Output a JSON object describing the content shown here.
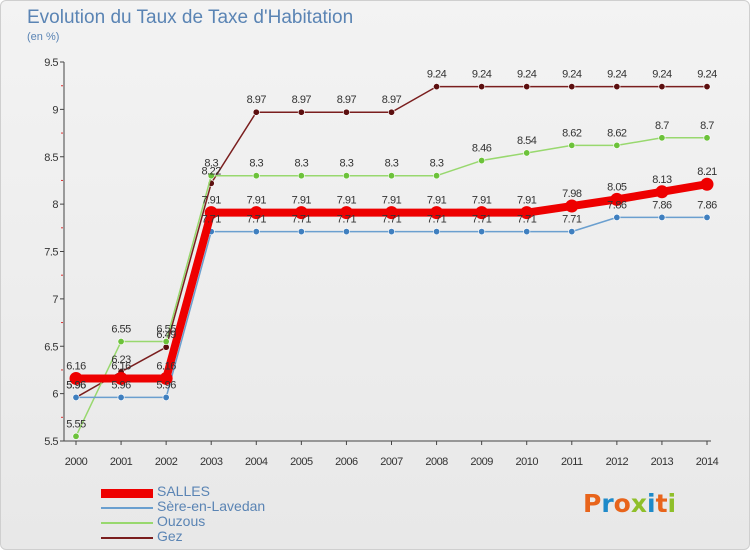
{
  "header": {
    "title": "Evolution du Taux de Taxe d'Habitation",
    "subtitle": "(en %)"
  },
  "logo": {
    "text": "Proxiti",
    "colors": [
      "#e8641b",
      "#1f8ac9",
      "#e8641b",
      "#8fbf2a",
      "#1f8ac9",
      "#e8641b",
      "#8fbf2a"
    ]
  },
  "chart_data": {
    "type": "line",
    "title": "Evolution du Taux de Taxe d'Habitation",
    "ylabel": "(en %)",
    "xlabel": "",
    "x": [
      "2000",
      "2001",
      "2002",
      "2003",
      "2004",
      "2005",
      "2006",
      "2007",
      "2008",
      "2009",
      "2010",
      "2011",
      "2012",
      "2013",
      "2014"
    ],
    "ylim": [
      5.5,
      9.5
    ],
    "yticks": [
      5.5,
      6,
      6.5,
      7,
      7.5,
      8,
      8.5,
      9,
      9.5
    ],
    "grid": false,
    "legend_position": "bottom-left",
    "series": [
      {
        "name": "Gez",
        "color": "#7a1e1e",
        "marker": "#5c0f0f",
        "values": [
          5.96,
          6.23,
          6.49,
          8.22,
          8.97,
          8.97,
          8.97,
          8.97,
          9.24,
          9.24,
          9.24,
          9.24,
          9.24,
          9.24,
          9.24
        ]
      },
      {
        "name": "Ouzous",
        "color": "#98d86e",
        "marker": "#6cc23a",
        "values": [
          5.55,
          6.55,
          6.55,
          8.3,
          8.3,
          8.3,
          8.3,
          8.3,
          8.3,
          8.46,
          8.54,
          8.62,
          8.62,
          8.7,
          8.7
        ]
      },
      {
        "name": "Sère-en-Lavedan",
        "color": "#6a9fcf",
        "marker": "#3f7fbf",
        "values": [
          5.96,
          5.96,
          5.96,
          7.71,
          7.71,
          7.71,
          7.71,
          7.71,
          7.71,
          7.71,
          7.71,
          7.71,
          7.86,
          7.86,
          7.86
        ]
      },
      {
        "name": "SALLES",
        "color": "#ee0000",
        "marker": "#ee0000",
        "values": [
          6.16,
          6.16,
          6.16,
          7.91,
          7.91,
          7.91,
          7.91,
          7.91,
          7.91,
          7.91,
          7.91,
          7.98,
          8.05,
          8.13,
          8.21
        ]
      }
    ]
  }
}
